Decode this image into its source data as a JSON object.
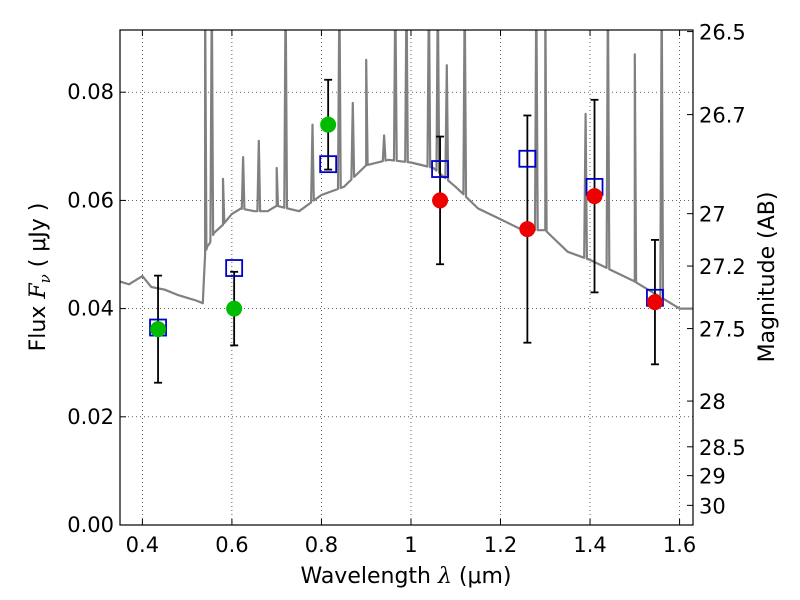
{
  "chart_data": {
    "type": "scatter",
    "xlabel": {
      "pre": "Wavelength ",
      "sym": "λ",
      "post": " (μm)"
    },
    "ylabel": {
      "pre": "Flux ",
      "sym": "F",
      "sub": "ν",
      "post": " ( μJy )"
    },
    "y2label": "Magnitude (AB)",
    "xlim": [
      0.35,
      1.63
    ],
    "ylim": [
      0.0,
      0.0915
    ],
    "x_ticks": [
      0.4,
      0.6,
      0.8,
      1.0,
      1.2,
      1.4,
      1.6
    ],
    "x_tick_labels": [
      "0.4",
      "0.6",
      "0.8",
      "1",
      "1.2",
      "1.4",
      "1.6"
    ],
    "y_ticks": [
      0.0,
      0.02,
      0.04,
      0.06,
      0.08
    ],
    "y_tick_labels": [
      "0.00",
      "0.02",
      "0.04",
      "0.06",
      "0.08"
    ],
    "y2_ticks": [
      26.5,
      26.7,
      27,
      27.2,
      27.5,
      28,
      28.5,
      29,
      30
    ],
    "y2_tick_labels": [
      "26.5",
      "26.7",
      "27",
      "27.2",
      "27.5",
      "28",
      "28.5",
      "29",
      "30"
    ],
    "grid": true,
    "colors": {
      "model": "#808080",
      "model_flux": "#0000cc",
      "green_obs": "#00bb00",
      "red_obs": "#ee0000",
      "errorbar": "#000000"
    },
    "model_spectrum": {
      "x": [
        0.35,
        0.37,
        0.4,
        0.42,
        0.45,
        0.48,
        0.5,
        0.52,
        0.535,
        0.54,
        0.545,
        0.55,
        0.56,
        0.58,
        0.6,
        0.62,
        0.65,
        0.68,
        0.7,
        0.75,
        0.8,
        0.85,
        0.9,
        0.95,
        1.0,
        1.05,
        1.1,
        1.15,
        1.2,
        1.25,
        1.3,
        1.35,
        1.4,
        1.45,
        1.5,
        1.55,
        1.6,
        1.63
      ],
      "y": [
        0.045,
        0.0445,
        0.046,
        0.044,
        0.0435,
        0.0425,
        0.042,
        0.0415,
        0.041,
        0.05,
        0.0515,
        0.052,
        0.054,
        0.0555,
        0.0575,
        0.0585,
        0.058,
        0.058,
        0.059,
        0.058,
        0.061,
        0.0625,
        0.0665,
        0.0675,
        0.067,
        0.066,
        0.0625,
        0.0585,
        0.0565,
        0.0545,
        0.0545,
        0.0505,
        0.049,
        0.047,
        0.045,
        0.0425,
        0.04,
        0.04
      ],
      "lines": [
        {
          "x": 0.54,
          "y": 0.099
        },
        {
          "x": 0.555,
          "y": 0.099
        },
        {
          "x": 0.58,
          "y": 0.064
        },
        {
          "x": 0.625,
          "y": 0.068
        },
        {
          "x": 0.66,
          "y": 0.071
        },
        {
          "x": 0.7,
          "y": 0.066
        },
        {
          "x": 0.72,
          "y": 0.099
        },
        {
          "x": 0.78,
          "y": 0.074
        },
        {
          "x": 0.84,
          "y": 0.099
        },
        {
          "x": 0.87,
          "y": 0.078
        },
        {
          "x": 0.9,
          "y": 0.086
        },
        {
          "x": 0.94,
          "y": 0.072
        },
        {
          "x": 0.965,
          "y": 0.099
        },
        {
          "x": 0.99,
          "y": 0.099
        },
        {
          "x": 1.04,
          "y": 0.099
        },
        {
          "x": 1.06,
          "y": 0.099
        },
        {
          "x": 1.08,
          "y": 0.085
        },
        {
          "x": 1.12,
          "y": 0.099
        },
        {
          "x": 1.28,
          "y": 0.099
        },
        {
          "x": 1.3,
          "y": 0.099
        },
        {
          "x": 1.39,
          "y": 0.076
        },
        {
          "x": 1.44,
          "y": 0.099
        },
        {
          "x": 1.5,
          "y": 0.087
        },
        {
          "x": 1.56,
          "y": 0.099
        }
      ]
    },
    "model_flux_points": {
      "x": [
        0.435,
        0.605,
        0.815,
        1.065,
        1.26,
        1.41,
        1.545
      ],
      "y": [
        0.0365,
        0.0475,
        0.0667,
        0.0658,
        0.0677,
        0.0625,
        0.042
      ]
    },
    "observed_green": {
      "x": [
        0.435,
        0.605,
        0.815
      ],
      "y": [
        0.0362,
        0.04,
        0.074
      ],
      "err": [
        0.0099,
        0.0068,
        0.0083
      ]
    },
    "observed_red": {
      "x": [
        1.065,
        1.26,
        1.41,
        1.545
      ],
      "y": [
        0.06,
        0.0547,
        0.0608,
        0.0412
      ],
      "err": [
        0.0118,
        0.021,
        0.0178,
        0.0115
      ]
    }
  }
}
